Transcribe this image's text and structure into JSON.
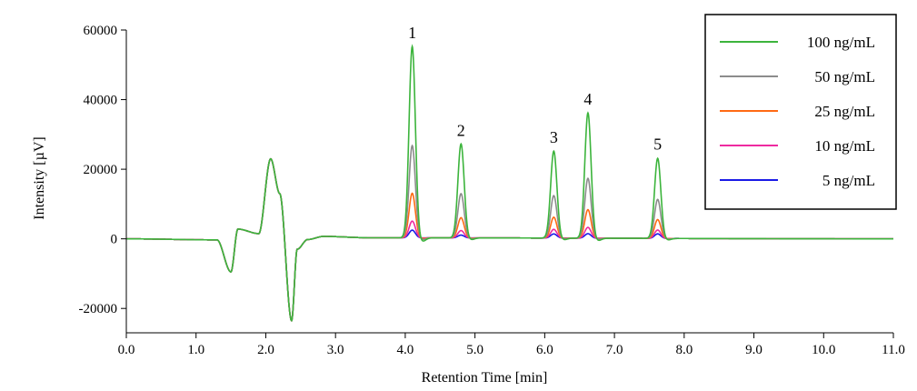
{
  "chart_data": {
    "type": "line",
    "title": "",
    "xlabel": "Retention Time [min]",
    "ylabel": "Intensity [µV]",
    "xlim": [
      0,
      11
    ],
    "ylim": [
      -27000,
      60000
    ],
    "x_ticks": [
      0,
      1,
      2,
      3,
      4,
      5,
      6,
      7,
      8,
      9,
      10,
      11
    ],
    "x_tick_labels": [
      "0.0",
      "1.0",
      "2.0",
      "3.0",
      "4.0",
      "5.0",
      "6.0",
      "7.0",
      "8.0",
      "9.0",
      "10.0",
      "11.0"
    ],
    "y_ticks": [
      -20000,
      0,
      20000,
      40000,
      60000
    ],
    "y_tick_labels": [
      "-20000",
      "0",
      "20000",
      "40000",
      "60000"
    ],
    "grid": false,
    "legend_position": "top-right",
    "baseline_features": [
      {
        "x": 1.3,
        "y": -300
      },
      {
        "x": 1.5,
        "y": -9500
      },
      {
        "x": 1.6,
        "y": 2800
      },
      {
        "x": 1.9,
        "y": 1500
      },
      {
        "x": 2.07,
        "y": 23000
      },
      {
        "x": 2.2,
        "y": 13000
      },
      {
        "x": 2.37,
        "y": -23500
      },
      {
        "x": 2.45,
        "y": -3000
      },
      {
        "x": 2.6,
        "y": -200
      },
      {
        "x": 2.83,
        "y": 700
      },
      {
        "x": 3.5,
        "y": 300
      }
    ],
    "peaks": [
      {
        "label": "1",
        "x": 4.1
      },
      {
        "label": "2",
        "x": 4.8
      },
      {
        "label": "3",
        "x": 6.13
      },
      {
        "label": "4",
        "x": 6.62
      },
      {
        "label": "5",
        "x": 7.62
      }
    ],
    "series": [
      {
        "name": "100 ng/mL",
        "color": "#3cb43c",
        "peak_heights": [
          55000,
          27000,
          25000,
          36000,
          23000
        ]
      },
      {
        "name": "50 ng/mL",
        "color": "#8c8c8c",
        "peak_heights": [
          26500,
          12700,
          12200,
          17200,
          11200
        ]
      },
      {
        "name": "25 ng/mL",
        "color": "#ff6a14",
        "peak_heights": [
          12800,
          5800,
          6000,
          8200,
          5400
        ]
      },
      {
        "name": "10 ng/mL",
        "color": "#ee2aa0",
        "peak_heights": [
          4800,
          2100,
          2500,
          3100,
          2400
        ]
      },
      {
        "name": "5 ng/mL",
        "color": "#1a1ae6",
        "peak_heights": [
          2200,
          800,
          1200,
          1300,
          1300
        ]
      }
    ]
  }
}
